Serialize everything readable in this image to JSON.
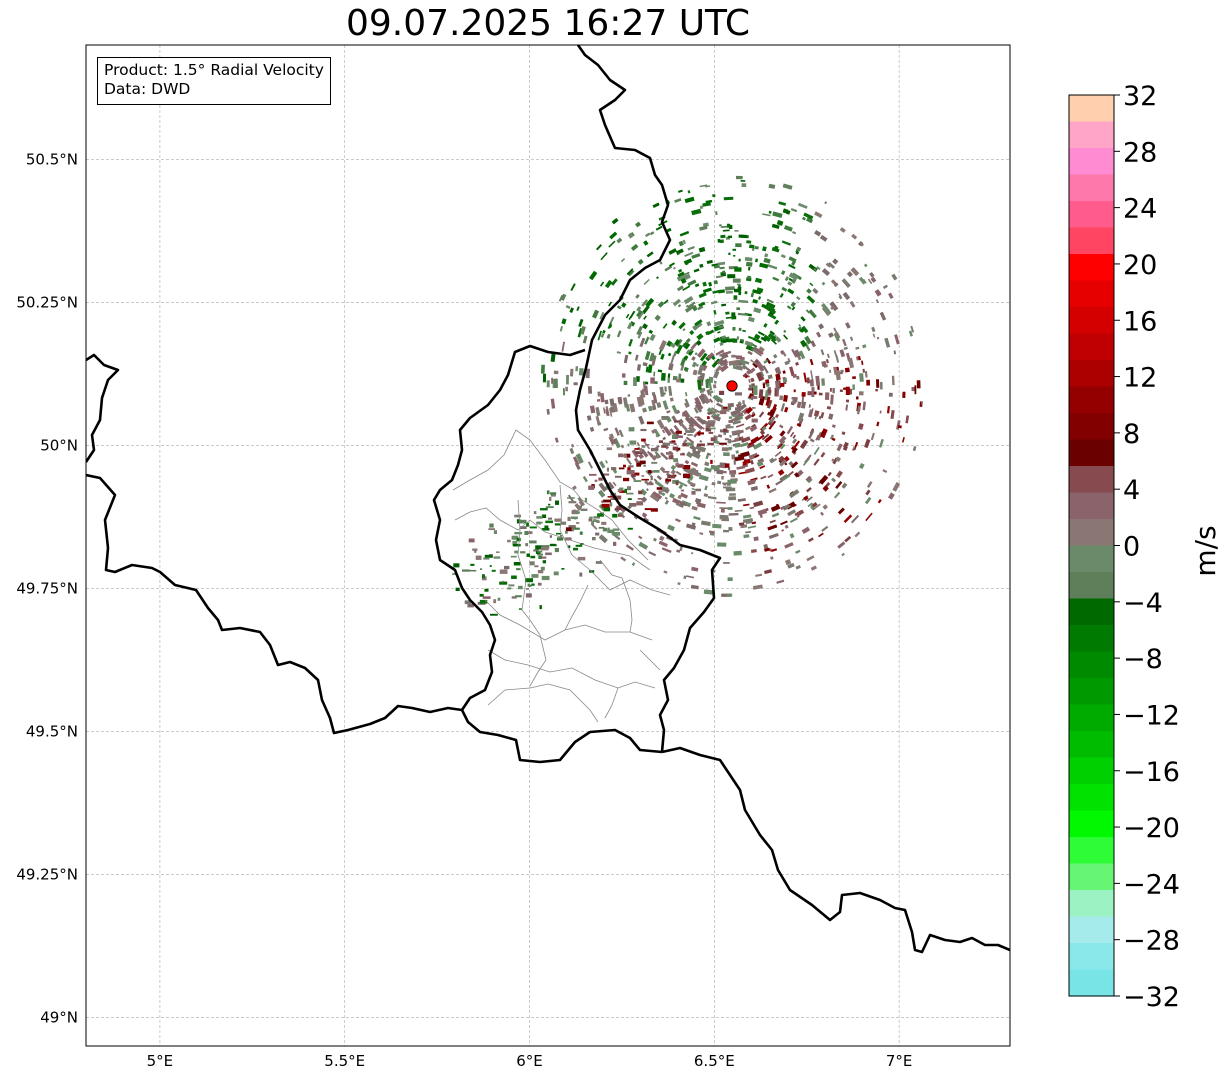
{
  "title": "09.07.2025 16:27 UTC",
  "info_box": {
    "product": "Product: 1.5° Radial Velocity",
    "data": "Data: DWD"
  },
  "map": {
    "projection": "PlateCarree",
    "lon_range": [
      4.8,
      7.3
    ],
    "lat_range": [
      48.95,
      50.7
    ],
    "lon_ticks": [
      {
        "value": 5.0,
        "label": "5°E"
      },
      {
        "value": 5.5,
        "label": "5.5°E"
      },
      {
        "value": 6.0,
        "label": "6°E"
      },
      {
        "value": 6.5,
        "label": "6.5°E"
      },
      {
        "value": 7.0,
        "label": "7°E"
      }
    ],
    "lat_ticks": [
      {
        "value": 49.0,
        "label": "49°N"
      },
      {
        "value": 49.25,
        "label": "49.25°N"
      },
      {
        "value": 49.5,
        "label": "49.5°N"
      },
      {
        "value": 49.75,
        "label": "49.75°N"
      },
      {
        "value": 50.0,
        "label": "50°N"
      },
      {
        "value": 50.25,
        "label": "50.25°N"
      },
      {
        "value": 50.5,
        "label": "50.5°N"
      }
    ],
    "gridlines": true,
    "radar_site": {
      "lon": 6.548,
      "lat": 50.11,
      "color": "#ff0000"
    }
  },
  "colorbar": {
    "unit": "m/s",
    "range": [
      -32,
      32
    ],
    "tick_labels": [
      "32",
      "28",
      "24",
      "20",
      "16",
      "12",
      "8",
      "4",
      "0",
      "−4",
      "−8",
      "−12",
      "−16",
      "−20",
      "−24",
      "−28",
      "−32"
    ],
    "colors_top_to_bottom": [
      "#ffcfae",
      "#ffa6c8",
      "#ff8cd2",
      "#ff78ac",
      "#ff5b8c",
      "#ff4561",
      "#ff0000",
      "#e70000",
      "#d40000",
      "#c00000",
      "#ab0000",
      "#940000",
      "#820000",
      "#6b0000",
      "#874a4e",
      "#8b636a",
      "#8a7672",
      "#6b8a6a",
      "#5f7e5a",
      "#006a00",
      "#007a00",
      "#008a00",
      "#009a00",
      "#00ab00",
      "#00bc00",
      "#00cf00",
      "#00e300",
      "#00f800",
      "#2dfc36",
      "#66f674",
      "#9cf2c2",
      "#a6ebeb",
      "#8ae8ea",
      "#78e4e6"
    ]
  }
}
